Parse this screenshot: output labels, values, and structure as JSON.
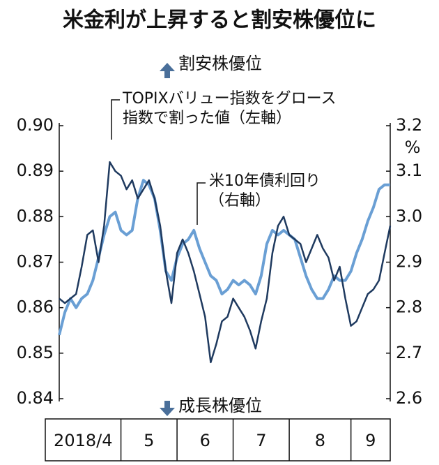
{
  "chart_data": {
    "type": "line",
    "title": "米金利が上昇すると割安株優位に",
    "annotations": [
      "割安株優位",
      "成長株優位"
    ],
    "y2_unit": "%",
    "categories": [
      "2018/4",
      null,
      null,
      null,
      null,
      null,
      null,
      null,
      null,
      null,
      null,
      "5",
      null,
      null,
      null,
      null,
      null,
      null,
      null,
      null,
      null,
      "6",
      null,
      null,
      null,
      null,
      null,
      null,
      null,
      null,
      null,
      "7",
      null,
      null,
      null,
      null,
      null,
      null,
      null,
      null,
      null,
      "8",
      null,
      null,
      null,
      null,
      null,
      null,
      null,
      null,
      null,
      null,
      "9",
      null,
      null,
      null,
      null,
      null,
      null,
      null
    ],
    "series": [
      {
        "name": "TOPIXバリュー指数をグロース\n指数で割った値（左軸）",
        "color": "#1f3a5f",
        "axis": "y",
        "values": [
          0.862,
          0.861,
          0.862,
          0.863,
          0.869,
          0.876,
          0.877,
          0.87,
          0.878,
          0.892,
          0.89,
          0.889,
          0.886,
          0.888,
          0.884,
          0.886,
          0.888,
          0.884,
          0.878,
          0.868,
          0.861,
          0.872,
          0.875,
          0.872,
          0.868,
          0.863,
          0.858,
          0.848,
          0.852,
          0.857,
          0.858,
          0.862,
          0.86,
          0.858,
          0.855,
          0.851,
          0.857,
          0.862,
          0.872,
          0.878,
          0.88,
          0.876,
          0.875,
          0.874,
          0.87,
          0.873,
          0.876,
          0.873,
          0.871,
          0.866,
          0.869,
          0.862,
          0.856,
          0.857,
          0.86,
          0.863,
          0.864,
          0.866,
          0.872,
          0.878
        ]
      },
      {
        "name": "米10年債利回り\n（右軸）",
        "color": "#6a9fd4",
        "axis": "y2",
        "values": [
          2.74,
          2.79,
          2.82,
          2.8,
          2.82,
          2.83,
          2.86,
          2.91,
          2.96,
          3.0,
          3.01,
          2.97,
          2.96,
          2.97,
          3.04,
          3.08,
          3.07,
          3.04,
          2.97,
          2.88,
          2.86,
          2.91,
          2.94,
          2.95,
          2.97,
          2.93,
          2.9,
          2.87,
          2.86,
          2.83,
          2.84,
          2.86,
          2.85,
          2.86,
          2.85,
          2.83,
          2.87,
          2.94,
          2.97,
          2.96,
          2.97,
          2.96,
          2.95,
          2.91,
          2.87,
          2.84,
          2.82,
          2.82,
          2.84,
          2.87,
          2.86,
          2.86,
          2.88,
          2.92,
          2.95,
          2.99,
          3.02,
          3.06,
          3.07,
          3.07
        ]
      }
    ],
    "ylim": [
      0.84,
      0.9
    ],
    "yticks": [
      0.84,
      0.85,
      0.86,
      0.87,
      0.88,
      0.89,
      {
        "value": 0.9,
        "label": "0.90"
      }
    ],
    "y2lim": [
      2.6,
      3.2
    ],
    "y2ticks": [
      2.6,
      2.7,
      2.8,
      2.9,
      {
        "value": 3,
        "label": "3.0"
      },
      3.1,
      3.2
    ],
    "grid": false
  }
}
